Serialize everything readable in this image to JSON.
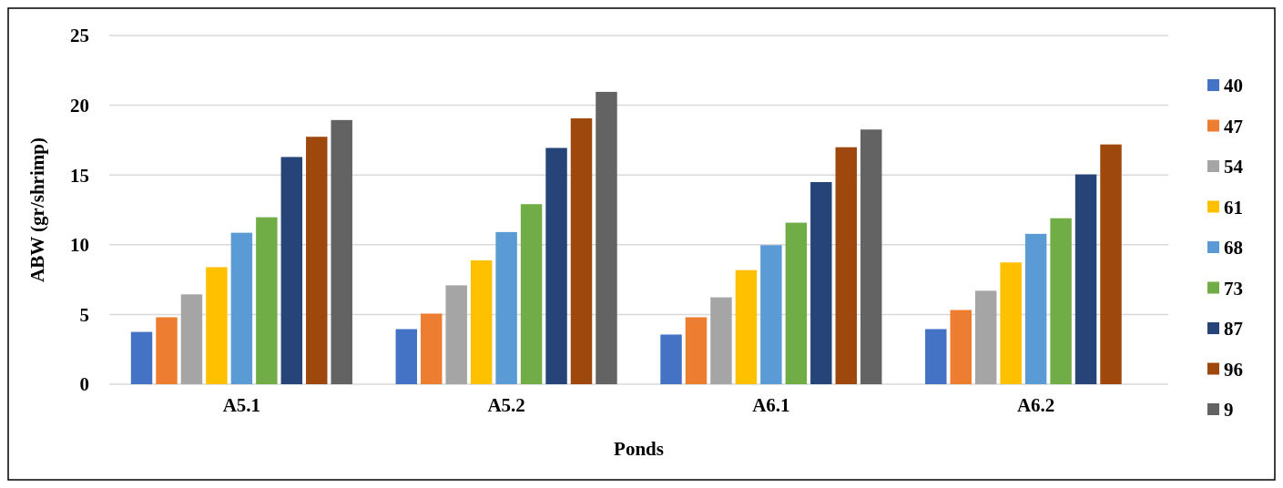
{
  "chart_data": {
    "type": "bar",
    "xlabel": "Ponds",
    "ylabel": "ABW (gr/shrimp)",
    "categories": [
      "A5.1",
      "A5.2",
      "A6.1",
      "A6.2"
    ],
    "ylim": [
      0,
      25
    ],
    "yticks": [
      0,
      5,
      10,
      15,
      20,
      25
    ],
    "grid": "y",
    "legend": "right",
    "series": [
      {
        "name": "40",
        "color": "#4472c4",
        "values": [
          3.75,
          3.95,
          3.56,
          3.95
        ]
      },
      {
        "name": "47",
        "color": "#ed7d31",
        "values": [
          4.8,
          5.06,
          4.8,
          5.32
        ]
      },
      {
        "name": "54",
        "color": "#a5a5a5",
        "values": [
          6.44,
          7.09,
          6.23,
          6.7
        ]
      },
      {
        "name": "61",
        "color": "#ffc000",
        "values": [
          8.39,
          8.88,
          8.18,
          8.73
        ]
      },
      {
        "name": "68",
        "color": "#5b9bd5",
        "values": [
          10.86,
          10.91,
          9.97,
          10.78
        ]
      },
      {
        "name": "73",
        "color": "#70ad47",
        "values": [
          11.97,
          12.91,
          11.58,
          11.9
        ]
      },
      {
        "name": "87",
        "color": "#264478",
        "values": [
          16.29,
          16.94,
          14.49,
          15.04
        ]
      },
      {
        "name": "96",
        "color": "#9e480e",
        "values": [
          17.74,
          19.06,
          16.99,
          17.19
        ]
      },
      {
        "name": "9",
        "color": "#636363",
        "values": [
          18.94,
          20.96,
          18.26,
          null
        ]
      }
    ]
  }
}
